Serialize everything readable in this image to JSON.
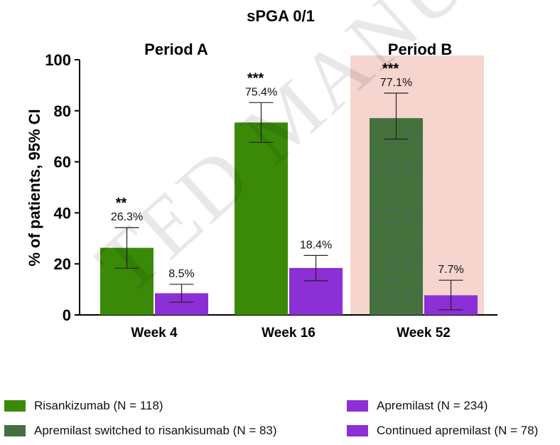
{
  "chart_data": {
    "type": "bar",
    "title": "sPGA 0/1",
    "ylabel": "% of patients, 95% CI",
    "xlabel": "",
    "ylim": [
      0,
      100
    ],
    "yticks": [
      0,
      20,
      40,
      60,
      80,
      100
    ],
    "periods": [
      {
        "label": "Period A",
        "covers": [
          "Week 4",
          "Week 16"
        ],
        "shaded": false
      },
      {
        "label": "Period B",
        "covers": [
          "Week 52"
        ],
        "shaded": true
      }
    ],
    "categories": [
      "Week 4",
      "Week 16",
      "Week 52"
    ],
    "bars": [
      {
        "category": "Week 4",
        "group": "risankizumab",
        "value": 26.3,
        "ci": [
          18.3,
          34.2
        ],
        "label": "26.3%",
        "significance": "**"
      },
      {
        "category": "Week 4",
        "group": "apremilast",
        "value": 8.5,
        "ci": [
          5.0,
          12.0
        ],
        "label": "8.5%",
        "significance": ""
      },
      {
        "category": "Week 16",
        "group": "risankizumab",
        "value": 75.4,
        "ci": [
          67.6,
          83.2
        ],
        "label": "75.4%",
        "significance": "***"
      },
      {
        "category": "Week 16",
        "group": "apremilast",
        "value": 18.4,
        "ci": [
          13.4,
          23.3
        ],
        "label": "18.4%",
        "significance": ""
      },
      {
        "category": "Week 52",
        "group": "switched",
        "value": 77.1,
        "ci": [
          68.9,
          86.9
        ],
        "label": "77.1%",
        "significance": "***"
      },
      {
        "category": "Week 52",
        "group": "continued",
        "value": 7.7,
        "ci": [
          2.0,
          13.6
        ],
        "label": "7.7%",
        "significance": ""
      }
    ],
    "colors": {
      "risankizumab": "#3a8a08",
      "apremilast": "#8b2fd6",
      "switched": "#3f7a2c",
      "continued": "#8b2fd6",
      "period_b_shade": "#f5d5cd"
    }
  },
  "legend": [
    {
      "group": "risankizumab",
      "label": "Risankizumab (N = 118)"
    },
    {
      "group": "apremilast",
      "label": "Apremilast (N = 234)"
    },
    {
      "group": "switched",
      "label": "Apremilast switched to risankisumab (N = 83)"
    },
    {
      "group": "continued",
      "label": "Continued apremilast (N = 78)"
    }
  ],
  "watermark": "TED MANUSCRIPT"
}
